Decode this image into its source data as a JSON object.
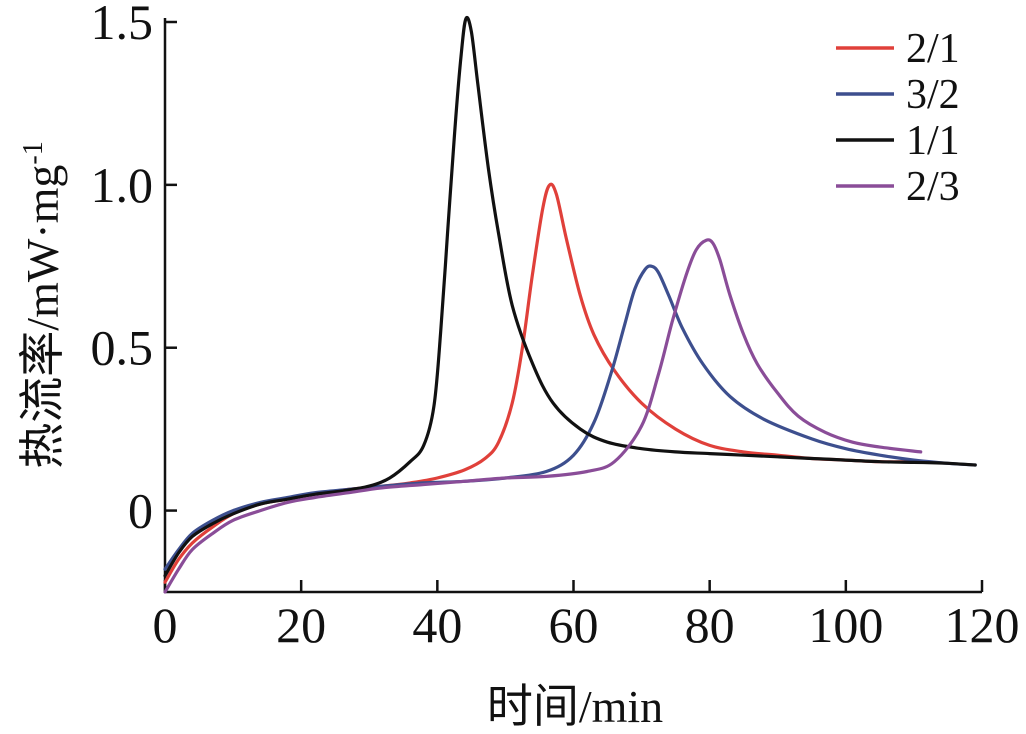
{
  "chart_data": {
    "type": "line",
    "xlabel": "时间/min",
    "ylabel_main": "热流率/mW·mg",
    "ylabel_sup": "-1",
    "xlim": [
      0,
      120
    ],
    "ylim": [
      -0.25,
      1.5
    ],
    "x_ticks": [
      0,
      20,
      40,
      60,
      80,
      100,
      120
    ],
    "x_tick_labels": [
      "0",
      "20",
      "40",
      "60",
      "80",
      "100",
      "120"
    ],
    "y_ticks": [
      0,
      0.5,
      1.0,
      1.5
    ],
    "y_tick_labels": [
      "0",
      "0.5",
      "1.0",
      "1.5"
    ],
    "grid": false,
    "legend_position": "top-right",
    "series": [
      {
        "name": "2/1",
        "color": "#e0403a",
        "x": [
          0,
          2,
          4,
          7,
          10,
          14,
          18,
          22,
          27,
          32,
          36,
          40,
          44,
          47,
          49,
          51,
          52.5,
          54,
          55.5,
          56.5,
          57.5,
          59,
          61,
          63,
          66,
          70,
          75,
          80,
          85,
          90,
          95,
          100,
          105,
          110
        ],
        "y": [
          -0.22,
          -0.15,
          -0.1,
          -0.05,
          -0.01,
          0.02,
          0.035,
          0.05,
          0.065,
          0.075,
          0.085,
          0.1,
          0.125,
          0.16,
          0.21,
          0.33,
          0.5,
          0.73,
          0.93,
          1.0,
          0.97,
          0.83,
          0.66,
          0.54,
          0.43,
          0.33,
          0.25,
          0.2,
          0.18,
          0.17,
          0.16,
          0.155,
          0.15,
          0.15
        ]
      },
      {
        "name": "3/2",
        "color": "#3d4f8e",
        "x": [
          0,
          2,
          4,
          7,
          10,
          14,
          18,
          22,
          27,
          32,
          38,
          44,
          50,
          56,
          60,
          63,
          65.5,
          67.5,
          69,
          70.5,
          71.5,
          72.5,
          74,
          76,
          79,
          83,
          88,
          95,
          100,
          105,
          110,
          115,
          119
        ],
        "y": [
          -0.18,
          -0.12,
          -0.07,
          -0.03,
          0.0,
          0.025,
          0.04,
          0.055,
          0.065,
          0.075,
          0.085,
          0.09,
          0.1,
          0.12,
          0.17,
          0.27,
          0.42,
          0.57,
          0.68,
          0.74,
          0.75,
          0.73,
          0.66,
          0.56,
          0.45,
          0.35,
          0.28,
          0.22,
          0.19,
          0.17,
          0.155,
          0.145,
          0.14
        ]
      },
      {
        "name": "1/1",
        "color": "#111111",
        "x": [
          0,
          2,
          4,
          7,
          10,
          14,
          18,
          22,
          26,
          30,
          33,
          36,
          38,
          39.5,
          40.5,
          41.5,
          42.5,
          43.5,
          44.2,
          45,
          46,
          47.5,
          49,
          51,
          54,
          57,
          61,
          65,
          70,
          75,
          80,
          85,
          90,
          95,
          100,
          105,
          110,
          115,
          119
        ],
        "y": [
          -0.2,
          -0.13,
          -0.08,
          -0.04,
          -0.01,
          0.02,
          0.035,
          0.05,
          0.06,
          0.075,
          0.1,
          0.15,
          0.2,
          0.32,
          0.55,
          0.85,
          1.15,
          1.4,
          1.51,
          1.47,
          1.3,
          1.05,
          0.85,
          0.63,
          0.45,
          0.33,
          0.25,
          0.21,
          0.19,
          0.18,
          0.175,
          0.17,
          0.165,
          0.16,
          0.155,
          0.15,
          0.148,
          0.145,
          0.14
        ]
      },
      {
        "name": "2/3",
        "color": "#8a4d98",
        "x": [
          0,
          2,
          4,
          7,
          10,
          14,
          18,
          22,
          27,
          32,
          38,
          44,
          50,
          56,
          62,
          66,
          70,
          72.5,
          74.5,
          76.5,
          78,
          79.5,
          80.5,
          81.5,
          83,
          85,
          87,
          90,
          93,
          97,
          101,
          105,
          111
        ],
        "y": [
          -0.25,
          -0.18,
          -0.12,
          -0.07,
          -0.03,
          0.0,
          0.025,
          0.04,
          0.055,
          0.07,
          0.08,
          0.09,
          0.1,
          0.105,
          0.12,
          0.15,
          0.26,
          0.42,
          0.58,
          0.72,
          0.8,
          0.83,
          0.82,
          0.77,
          0.66,
          0.54,
          0.45,
          0.36,
          0.29,
          0.24,
          0.21,
          0.195,
          0.18
        ]
      }
    ]
  }
}
